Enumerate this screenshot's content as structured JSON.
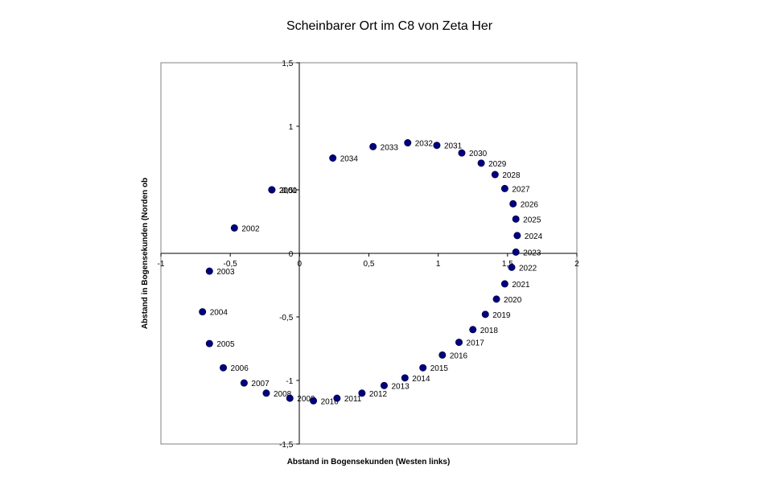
{
  "chart_data": {
    "type": "scatter",
    "title": "Scheinbarer Ort im C8 von Zeta Her",
    "xlabel": "Abstand in Bogensekunden (Westen links)",
    "ylabel": "Abstand in Bogensekunden (Norden ob",
    "xlim": [
      -1,
      2
    ],
    "ylim": [
      -1.5,
      1.5
    ],
    "x_ticks": [
      "-1",
      "-0,5",
      "0",
      "0,5",
      "1",
      "1,5",
      "2"
    ],
    "y_ticks": [
      "-1,5",
      "-1",
      "-0,5",
      "0",
      "0,5",
      "1",
      "1,5"
    ],
    "grid": false,
    "marker_color": "#000080",
    "points": [
      {
        "label": "2000",
        "x": -0.2,
        "y": 0.5
      },
      {
        "label": "2001",
        "x": -0.2,
        "y": 0.5
      },
      {
        "label": "2002",
        "x": -0.47,
        "y": 0.2
      },
      {
        "label": "2003",
        "x": -0.65,
        "y": -0.14
      },
      {
        "label": "2004",
        "x": -0.7,
        "y": -0.46
      },
      {
        "label": "2005",
        "x": -0.65,
        "y": -0.71
      },
      {
        "label": "2006",
        "x": -0.55,
        "y": -0.9
      },
      {
        "label": "2007",
        "x": -0.4,
        "y": -1.02
      },
      {
        "label": "2008",
        "x": -0.24,
        "y": -1.1
      },
      {
        "label": "2009",
        "x": -0.07,
        "y": -1.14
      },
      {
        "label": "2010",
        "x": 0.1,
        "y": -1.16
      },
      {
        "label": "2011",
        "x": 0.27,
        "y": -1.14
      },
      {
        "label": "2012",
        "x": 0.45,
        "y": -1.1
      },
      {
        "label": "2013",
        "x": 0.61,
        "y": -1.04
      },
      {
        "label": "2014",
        "x": 0.76,
        "y": -0.98
      },
      {
        "label": "2015",
        "x": 0.89,
        "y": -0.9
      },
      {
        "label": "2016",
        "x": 1.03,
        "y": -0.8
      },
      {
        "label": "2017",
        "x": 1.15,
        "y": -0.7
      },
      {
        "label": "2018",
        "x": 1.25,
        "y": -0.6
      },
      {
        "label": "2019",
        "x": 1.34,
        "y": -0.48
      },
      {
        "label": "2020",
        "x": 1.42,
        "y": -0.36
      },
      {
        "label": "2021",
        "x": 1.48,
        "y": -0.24
      },
      {
        "label": "2022",
        "x": 1.53,
        "y": -0.11
      },
      {
        "label": "2023",
        "x": 1.56,
        "y": 0.01
      },
      {
        "label": "2024",
        "x": 1.57,
        "y": 0.14
      },
      {
        "label": "2025",
        "x": 1.56,
        "y": 0.27
      },
      {
        "label": "2026",
        "x": 1.54,
        "y": 0.39
      },
      {
        "label": "2027",
        "x": 1.48,
        "y": 0.51
      },
      {
        "label": "2028",
        "x": 1.41,
        "y": 0.62
      },
      {
        "label": "2029",
        "x": 1.31,
        "y": 0.71
      },
      {
        "label": "2030",
        "x": 1.17,
        "y": 0.79
      },
      {
        "label": "2031",
        "x": 0.99,
        "y": 0.85
      },
      {
        "label": "2032",
        "x": 0.78,
        "y": 0.87
      },
      {
        "label": "2033",
        "x": 0.53,
        "y": 0.84
      },
      {
        "label": "2034",
        "x": 0.24,
        "y": 0.75
      }
    ]
  }
}
